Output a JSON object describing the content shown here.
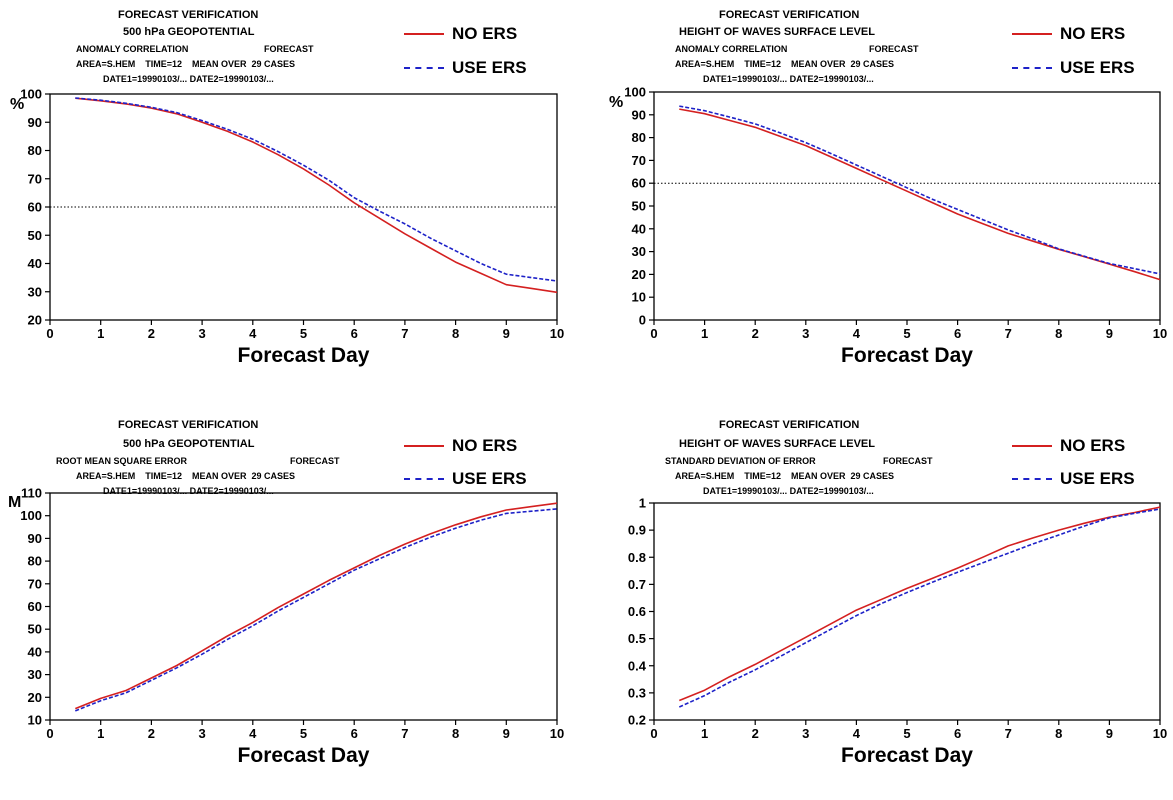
{
  "legend": {
    "no_ers": {
      "label": "NO ERS",
      "color": "#d42020"
    },
    "use_ers": {
      "label": "USE ERS",
      "color": "#1e22c8"
    }
  },
  "chart_data": [
    {
      "type": "line",
      "header": {
        "line1": "FORECAST VERIFICATION",
        "line2": "500 hPa GEOPOTENTIAL",
        "line3a": "ANOMALY CORRELATION",
        "line3b": "FORECAST",
        "line4": "AREA=S.HEM    TIME=12    MEAN OVER  29 CASES",
        "line5": "DATE1=19990103/... DATE2=19990103/..."
      },
      "unit_label": "%",
      "xlabel": "Forecast Day",
      "xlim": [
        0,
        10
      ],
      "ylim": [
        20,
        100
      ],
      "xticks": [
        0,
        1,
        2,
        3,
        4,
        5,
        6,
        7,
        8,
        9,
        10
      ],
      "yticks": [
        20,
        30,
        40,
        50,
        60,
        70,
        80,
        90,
        100
      ],
      "reference_line": 60,
      "x": [
        0.5,
        1,
        1.5,
        2,
        2.5,
        3,
        3.5,
        4,
        4.5,
        5,
        5.5,
        6,
        6.5,
        7,
        7.5,
        8,
        8.5,
        9,
        9.5,
        10
      ],
      "series": [
        {
          "name": "NO ERS",
          "values": [
            98.5,
            97.6,
            96.5,
            95.0,
            93.0,
            90.0,
            86.8,
            83.0,
            78.5,
            73.5,
            67.8,
            61.5,
            56.0,
            50.5,
            45.5,
            40.5,
            36.5,
            32.5,
            31.2,
            29.8
          ]
        },
        {
          "name": "USE ERS",
          "values": [
            98.6,
            97.8,
            96.7,
            95.3,
            93.4,
            90.6,
            87.5,
            84.0,
            79.6,
            74.8,
            69.5,
            63.3,
            58.5,
            54.0,
            49.0,
            44.5,
            40.0,
            36.2,
            35.0,
            33.8
          ]
        }
      ]
    },
    {
      "type": "line",
      "header": {
        "line1": "FORECAST VERIFICATION",
        "line2": "HEIGHT OF WAVES  SURFACE LEVEL",
        "line3a": "ANOMALY CORRELATION",
        "line3b": "FORECAST",
        "line4": "AREA=S.HEM    TIME=12    MEAN OVER  29 CASES",
        "line5": "DATE1=19990103/... DATE2=19990103/..."
      },
      "unit_label": "%",
      "xlabel": "Forecast Day",
      "xlim": [
        0,
        10
      ],
      "ylim": [
        0,
        100
      ],
      "xticks": [
        0,
        1,
        2,
        3,
        4,
        5,
        6,
        7,
        8,
        9,
        10
      ],
      "yticks": [
        0,
        10,
        20,
        30,
        40,
        50,
        60,
        70,
        80,
        90,
        100
      ],
      "reference_line": 60,
      "x": [
        0.5,
        1,
        1.5,
        2,
        2.5,
        3,
        3.5,
        4,
        4.5,
        5,
        5.5,
        6,
        6.5,
        7,
        7.5,
        8,
        8.5,
        9,
        9.5,
        10
      ],
      "series": [
        {
          "name": "NO ERS",
          "values": [
            92.5,
            90.5,
            87.5,
            84.5,
            80.5,
            76.5,
            71.5,
            66.5,
            61.5,
            56.5,
            51.5,
            46.5,
            42.2,
            38.0,
            34.5,
            31.0,
            27.8,
            24.5,
            21.2,
            17.7
          ]
        },
        {
          "name": "USE ERS",
          "values": [
            93.8,
            91.8,
            89.0,
            86.0,
            82.0,
            77.8,
            73.0,
            68.0,
            63.0,
            58.0,
            53.0,
            48.5,
            44.0,
            39.5,
            35.5,
            31.2,
            28.0,
            24.8,
            22.5,
            20.2
          ]
        }
      ]
    },
    {
      "type": "line",
      "header": {
        "line1": "FORECAST VERIFICATION",
        "line2": "500 hPa GEOPOTENTIAL",
        "line3a": "ROOT MEAN SQUARE ERROR",
        "line3b": "FORECAST",
        "line4": "AREA=S.HEM    TIME=12    MEAN OVER  29 CASES",
        "line5": "DATE1=19990103/... DATE2=19990103/..."
      },
      "unit_label": "M",
      "xlabel": "Forecast Day",
      "xlim": [
        0,
        10
      ],
      "ylim": [
        10,
        110
      ],
      "xticks": [
        0,
        1,
        2,
        3,
        4,
        5,
        6,
        7,
        8,
        9,
        10
      ],
      "yticks": [
        10,
        20,
        30,
        40,
        50,
        60,
        70,
        80,
        90,
        100,
        110
      ],
      "reference_line": null,
      "x": [
        0.5,
        1,
        1.5,
        2,
        2.5,
        3,
        3.5,
        4,
        4.5,
        5,
        5.5,
        6,
        6.5,
        7,
        7.5,
        8,
        8.5,
        9,
        9.5,
        10
      ],
      "series": [
        {
          "name": "NO ERS",
          "values": [
            15.0,
            19.5,
            23.0,
            28.5,
            34.0,
            40.5,
            47.0,
            53.0,
            59.5,
            65.5,
            71.5,
            77.0,
            82.5,
            87.5,
            92.0,
            96.0,
            99.5,
            102.5,
            104.0,
            105.5
          ]
        },
        {
          "name": "USE ERS",
          "values": [
            14.0,
            18.5,
            22.0,
            27.5,
            33.0,
            39.0,
            45.5,
            51.5,
            58.0,
            64.0,
            70.0,
            76.0,
            81.0,
            86.0,
            90.5,
            94.5,
            98.0,
            101.0,
            102.0,
            103.0
          ]
        }
      ]
    },
    {
      "type": "line",
      "header": {
        "line1": "FORECAST VERIFICATION",
        "line2": "HEIGHT OF WAVES  SURFACE LEVEL",
        "line3a": "STANDARD DEVIATION OF ERROR",
        "line3b": "FORECAST",
        "line4": "AREA=S.HEM    TIME=12    MEAN OVER  29 CASES",
        "line5": "DATE1=19990103/... DATE2=19990103/..."
      },
      "unit_label": "",
      "xlabel": "Forecast Day",
      "xlim": [
        0,
        10
      ],
      "ylim": [
        0.2,
        1.0
      ],
      "xticks": [
        0,
        1,
        2,
        3,
        4,
        5,
        6,
        7,
        8,
        9,
        10
      ],
      "yticks": [
        0.2,
        0.3,
        0.4,
        0.5,
        0.6,
        0.7,
        0.8,
        0.9,
        1
      ],
      "reference_line": null,
      "x": [
        0.5,
        1,
        1.5,
        2,
        2.5,
        3,
        3.5,
        4,
        4.5,
        5,
        5.5,
        6,
        6.5,
        7,
        7.5,
        8,
        8.5,
        9,
        9.5,
        10
      ],
      "series": [
        {
          "name": "NO ERS",
          "values": [
            0.272,
            0.31,
            0.36,
            0.405,
            0.455,
            0.505,
            0.555,
            0.605,
            0.645,
            0.685,
            0.722,
            0.76,
            0.8,
            0.842,
            0.872,
            0.9,
            0.925,
            0.948,
            0.965,
            0.985
          ]
        },
        {
          "name": "USE ERS",
          "values": [
            0.248,
            0.29,
            0.34,
            0.385,
            0.435,
            0.485,
            0.535,
            0.585,
            0.63,
            0.67,
            0.708,
            0.745,
            0.78,
            0.815,
            0.85,
            0.882,
            0.915,
            0.945,
            0.962,
            0.978
          ]
        }
      ]
    }
  ]
}
